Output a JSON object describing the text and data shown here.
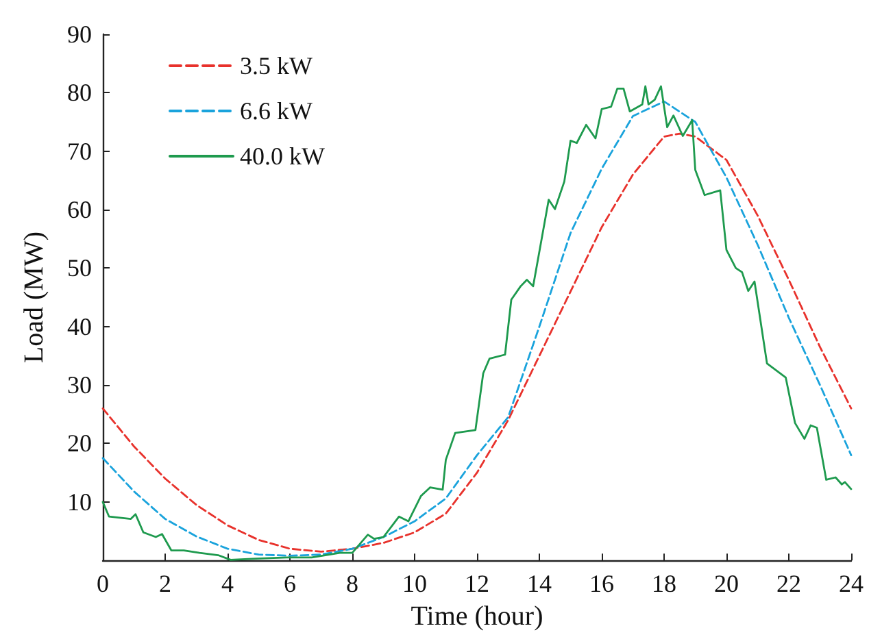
{
  "chart_data": {
    "type": "line",
    "xlabel": "Time (hour)",
    "ylabel": "Load (MW)",
    "xlim": [
      0,
      24
    ],
    "xticks": [
      0,
      2,
      4,
      6,
      8,
      10,
      12,
      14,
      16,
      18,
      20,
      22,
      24
    ],
    "ylim": [
      0,
      90
    ],
    "yticks": [
      10,
      20,
      30,
      40,
      50,
      60,
      70,
      80,
      90
    ],
    "grid": false,
    "legend": "top left",
    "marker": "none",
    "series": [
      {
        "name": "3.5 kW",
        "color": "#e8322c",
        "line_style": "dashed",
        "x": [
          0,
          1,
          2,
          3,
          4,
          5,
          6,
          7,
          8,
          9,
          10,
          11,
          12,
          13,
          14,
          15,
          16,
          17,
          18,
          18.5,
          19,
          20,
          21,
          22,
          23,
          24
        ],
        "values": [
          26,
          19.5,
          14,
          9.5,
          6,
          3.5,
          2,
          1.5,
          2,
          3,
          4.8,
          8,
          15,
          24,
          35,
          46,
          57,
          66,
          72.5,
          73,
          72.5,
          68.5,
          59,
          48,
          36.5,
          26
        ]
      },
      {
        "name": "6.6 kW",
        "color": "#1aa3dc",
        "line_style": "dashed",
        "x": [
          0,
          1,
          2,
          3,
          4,
          5,
          6,
          7,
          8,
          9,
          10,
          11,
          12,
          13,
          14,
          15,
          16,
          17,
          18,
          19,
          20,
          21,
          22,
          23,
          24
        ],
        "values": [
          17.5,
          11.8,
          7.1,
          4.1,
          2,
          1,
          0.8,
          1,
          2,
          4,
          6.7,
          10.6,
          18,
          24.5,
          40,
          56,
          67,
          76,
          78.5,
          75,
          65.5,
          54,
          41.5,
          30,
          18
        ]
      },
      {
        "name": "40.0 kW",
        "color": "#1e9a4e",
        "line_style": "solid",
        "x": [
          0,
          0.2,
          0.9,
          1.05,
          1.3,
          1.7,
          1.9,
          2.2,
          2.6,
          3.1,
          3.7,
          4.1,
          4.9,
          5.9,
          6.7,
          7.6,
          8,
          8.5,
          8.7,
          9,
          9.5,
          9.8,
          10.2,
          10.5,
          10.9,
          11,
          11.3,
          11.95,
          12.2,
          12.4,
          12.9,
          13.1,
          13.4,
          13.6,
          13.8,
          14.3,
          14.5,
          14.8,
          15,
          15.2,
          15.5,
          15.8,
          16,
          16.3,
          16.5,
          16.7,
          16.9,
          17.3,
          17.4,
          17.5,
          17.7,
          17.9,
          18.1,
          18.3,
          18.6,
          18.9,
          19,
          19.3,
          19.8,
          20,
          20.3,
          20.5,
          20.7,
          20.9,
          21.3,
          21.9,
          22.2,
          22.5,
          22.7,
          22.9,
          23.2,
          23.5,
          23.7,
          23.8,
          24
        ],
        "values": [
          10,
          7.5,
          7.1,
          7.9,
          4.8,
          4,
          4.5,
          1.7,
          1.7,
          1.3,
          0.9,
          0.1,
          0.3,
          0.5,
          0.5,
          1.3,
          1.3,
          4.4,
          3.7,
          4,
          7.5,
          6.7,
          11,
          12.5,
          12.1,
          17.2,
          21.8,
          22.3,
          32,
          34.5,
          35.2,
          44.6,
          46.9,
          48,
          46.9,
          61.7,
          60.1,
          64.8,
          71.8,
          71.4,
          74.5,
          72.2,
          77.2,
          77.6,
          80.7,
          80.7,
          76.8,
          78,
          81.1,
          78,
          78.8,
          81.1,
          74.1,
          76.1,
          72.6,
          75.3,
          66.8,
          62.5,
          63.3,
          53.1,
          50,
          49.3,
          46.1,
          47.7,
          33.7,
          31.3,
          23.5,
          20.8,
          23.1,
          22.7,
          13.8,
          14.2,
          13,
          13.4,
          12.2
        ]
      }
    ]
  }
}
